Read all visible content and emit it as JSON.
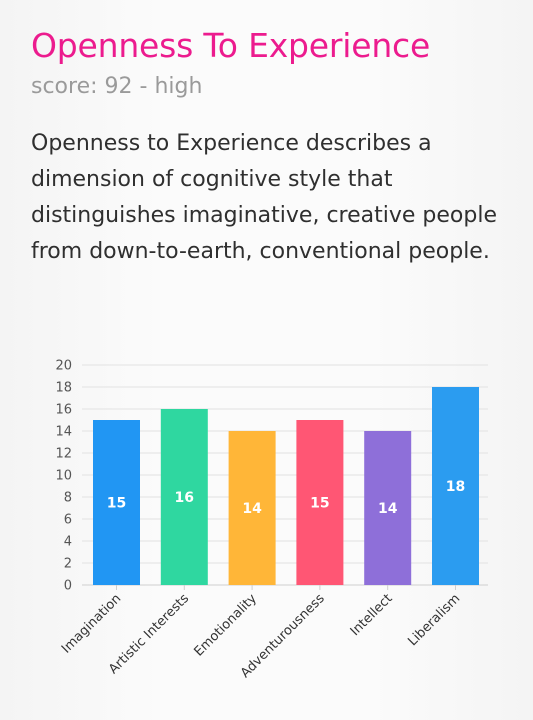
{
  "header": {
    "title": "Openness To Experience",
    "score_text": "score: 92 - high"
  },
  "description": "Openness to Experience describes a dimension of cognitive style that distinguishes imaginative, creative people from down-to-earth, conventional people.",
  "colors": {
    "title": "#ec1b8e",
    "subtitle": "#9a9a9a",
    "bars": [
      "#2196f3",
      "#2fd7a0",
      "#ffb638",
      "#ff5674",
      "#8e6fd9",
      "#2b9cf0"
    ]
  },
  "chart_data": {
    "type": "bar",
    "categories": [
      "Imagination",
      "Artistic Interests",
      "Emotionality",
      "Adventurousness",
      "Intellect",
      "Liberalism"
    ],
    "values": [
      15,
      16,
      14,
      15,
      14,
      18
    ],
    "ylim": [
      0,
      20
    ],
    "yticks": [
      0,
      2,
      4,
      6,
      8,
      10,
      12,
      14,
      16,
      18,
      20
    ],
    "grid": true,
    "legend": "none",
    "title": "",
    "xlabel": "",
    "ylabel": ""
  }
}
